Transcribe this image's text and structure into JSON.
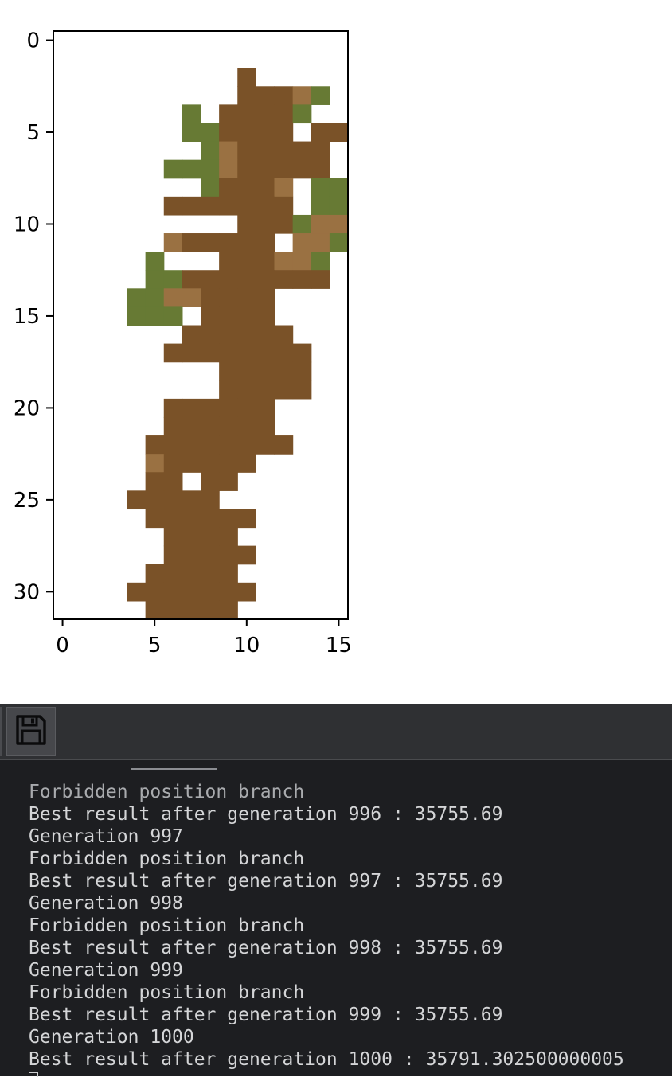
{
  "plot": {
    "grid_size": [
      16,
      32
    ],
    "colors": {
      "bark": "#7a5228",
      "light_bark": "#9a7142",
      "leaf": "#677a34",
      "background": "#ffffff"
    },
    "pixel_rows": [
      "................",
      "................",
      "..........B.....",
      "..........BBBLG.",
      ".......G.BBBBG..",
      ".......GGBBBB.BB",
      "........GLBBBBB.",
      "......GGGLBBBBB.",
      "........GBBBL.GG",
      "......BBBBBBB.GG",
      "..........BBBGLL",
      "......LBBBBB.LLG",
      ".....G...BBBLLG.",
      ".....GGBBBBBBBB.",
      "....GGLLBBBB....",
      "....GGG.BBBB....",
      ".......BBBBBB...",
      "......BBBBBBBB..",
      ".........BBBBB..",
      ".........BBBBB..",
      "......BBBBBB....",
      "......BBBBBB....",
      ".....BBBBBBBB...",
      ".....LBBBBB.....",
      ".....BB.BB......",
      "....BBBBB.......",
      ".....BBBBBB.....",
      "......BBBB......",
      "......BBBBB.....",
      ".....BBBBB......",
      "....BBBBBBB.....",
      ".....BBBBB......"
    ]
  },
  "chart_data": {
    "type": "heatmap",
    "x_ticks": [
      "0",
      "5",
      "10",
      "15"
    ],
    "y_ticks": [
      "0",
      "5",
      "10",
      "15",
      "20",
      "25",
      "30"
    ],
    "x_tick_values": [
      0,
      5,
      10,
      15
    ],
    "y_tick_values": [
      0,
      5,
      10,
      15,
      20,
      25,
      30
    ],
    "xlim": [
      -0.5,
      15.5
    ],
    "ylim": [
      31.5,
      -0.5
    ]
  },
  "toolbar": {
    "save_button_icon": "floppy-disk-icon"
  },
  "console": {
    "lines": [
      "Forbidden position branch",
      "Best result after generation 996 : 35755.69",
      "Generation 997",
      "Forbidden position branch",
      "Best result after generation 997 : 35755.69",
      "Generation 998",
      "Forbidden position branch",
      "Best result after generation 998 : 35755.69",
      "Generation 999",
      "Forbidden position branch",
      "Best result after generation 999 : 35755.69",
      "Generation 1000",
      "Best result after generation 1000 : 35791.302500000005"
    ]
  }
}
